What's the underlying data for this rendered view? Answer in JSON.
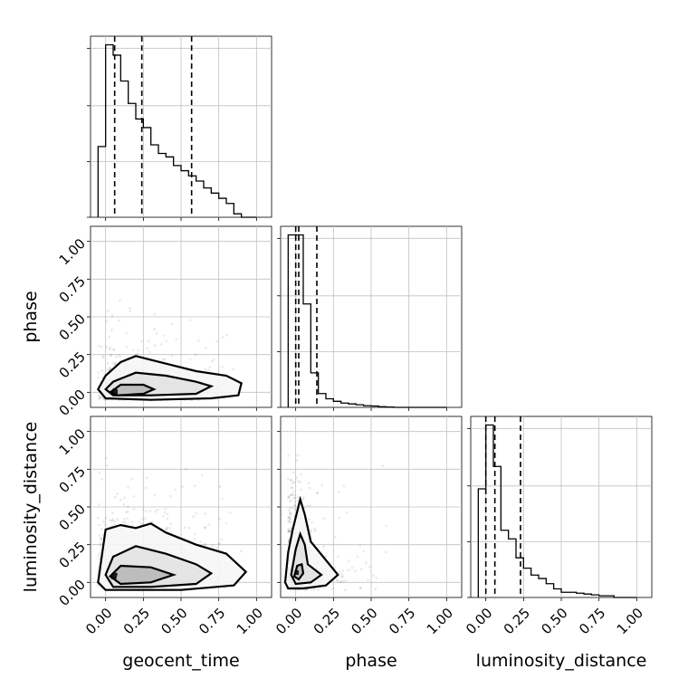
{
  "chart_data": {
    "type": "corner",
    "parameters": [
      "geocent_time",
      "phase",
      "luminosity_distance"
    ],
    "tick_labels": [
      "0.00",
      "0.25",
      "0.50",
      "0.75",
      "1.00"
    ],
    "range": [
      -0.1,
      1.1
    ],
    "grid": true,
    "diagonal": [
      {
        "name": "geocent_time",
        "bin_edges": [
          -0.05,
          0.0,
          0.05,
          0.1,
          0.15,
          0.2,
          0.25,
          0.3,
          0.35,
          0.4,
          0.45,
          0.5,
          0.55,
          0.6,
          0.65,
          0.7,
          0.75,
          0.8,
          0.85,
          0.9,
          0.95,
          1.0
        ],
        "counts": [
          0.41,
          1.0,
          0.94,
          0.79,
          0.66,
          0.57,
          0.52,
          0.42,
          0.37,
          0.35,
          0.3,
          0.27,
          0.24,
          0.21,
          0.17,
          0.14,
          0.11,
          0.08,
          0.02,
          0.0,
          0.0
        ],
        "quantiles": [
          0.06,
          0.24,
          0.57
        ]
      },
      {
        "name": "phase",
        "bin_edges": [
          -0.05,
          0.0,
          0.05,
          0.1,
          0.15,
          0.2,
          0.25,
          0.3,
          0.35,
          0.4,
          0.45,
          0.5,
          0.55,
          0.6,
          0.65,
          0.7,
          0.75,
          0.8,
          0.85,
          0.9,
          0.95,
          1.0
        ],
        "counts": [
          1.0,
          1.0,
          0.6,
          0.2,
          0.08,
          0.05,
          0.035,
          0.025,
          0.02,
          0.015,
          0.01,
          0.008,
          0.004,
          0.002,
          0.0,
          0.0,
          0.0,
          0.0,
          0.0,
          0.0,
          0.0
        ],
        "quantiles": [
          0.0,
          0.02,
          0.14
        ]
      },
      {
        "name": "luminosity_distance",
        "bin_edges": [
          -0.05,
          0.0,
          0.05,
          0.1,
          0.15,
          0.2,
          0.25,
          0.3,
          0.35,
          0.4,
          0.45,
          0.5,
          0.55,
          0.6,
          0.65,
          0.7,
          0.75,
          0.8,
          0.85,
          0.9,
          0.95,
          1.0
        ],
        "counts": [
          0.63,
          1.0,
          0.76,
          0.39,
          0.34,
          0.23,
          0.17,
          0.13,
          0.11,
          0.08,
          0.05,
          0.03,
          0.03,
          0.025,
          0.02,
          0.015,
          0.01,
          0.01,
          0.0,
          0.0,
          0.0
        ],
        "quantiles": [
          0.0,
          0.06,
          0.23
        ]
      }
    ],
    "pairs": [
      {
        "x": "geocent_time",
        "y": "phase",
        "contours": [
          [
            [
              -0.05,
              0.02
            ],
            [
              0.0,
              0.11
            ],
            [
              0.1,
              0.2
            ],
            [
              0.2,
              0.24
            ],
            [
              0.4,
              0.19
            ],
            [
              0.6,
              0.14
            ],
            [
              0.8,
              0.11
            ],
            [
              0.9,
              0.06
            ],
            [
              0.88,
              -0.02
            ],
            [
              0.7,
              -0.04
            ],
            [
              0.3,
              -0.05
            ],
            [
              0.0,
              -0.04
            ]
          ],
          [
            [
              0.0,
              0.02
            ],
            [
              0.05,
              0.07
            ],
            [
              0.2,
              0.13
            ],
            [
              0.4,
              0.11
            ],
            [
              0.6,
              0.07
            ],
            [
              0.7,
              0.04
            ],
            [
              0.6,
              -0.01
            ],
            [
              0.3,
              -0.02
            ],
            [
              0.05,
              -0.02
            ]
          ],
          [
            [
              0.03,
              0.0
            ],
            [
              0.1,
              0.05
            ],
            [
              0.25,
              0.05
            ],
            [
              0.32,
              0.02
            ],
            [
              0.25,
              -0.01
            ],
            [
              0.08,
              -0.02
            ]
          ],
          [
            [
              0.03,
              0.0
            ],
            [
              0.05,
              0.025
            ],
            [
              0.08,
              0.02
            ],
            [
              0.08,
              -0.01
            ],
            [
              0.05,
              -0.015
            ]
          ]
        ]
      },
      {
        "x": "geocent_time",
        "y": "luminosity_distance",
        "contours": [
          [
            [
              -0.05,
              0.0
            ],
            [
              0.0,
              0.35
            ],
            [
              0.1,
              0.38
            ],
            [
              0.2,
              0.36
            ],
            [
              0.3,
              0.39
            ],
            [
              0.4,
              0.33
            ],
            [
              0.6,
              0.25
            ],
            [
              0.8,
              0.19
            ],
            [
              0.93,
              0.07
            ],
            [
              0.85,
              -0.02
            ],
            [
              0.5,
              -0.05
            ],
            [
              0.0,
              -0.05
            ]
          ],
          [
            [
              0.0,
              0.05
            ],
            [
              0.05,
              0.17
            ],
            [
              0.2,
              0.24
            ],
            [
              0.4,
              0.19
            ],
            [
              0.6,
              0.12
            ],
            [
              0.7,
              0.06
            ],
            [
              0.6,
              -0.01
            ],
            [
              0.3,
              -0.03
            ],
            [
              0.05,
              -0.03
            ]
          ],
          [
            [
              0.03,
              0.04
            ],
            [
              0.1,
              0.11
            ],
            [
              0.3,
              0.1
            ],
            [
              0.45,
              0.05
            ],
            [
              0.3,
              0.0
            ],
            [
              0.1,
              -0.01
            ]
          ],
          [
            [
              0.03,
              0.04
            ],
            [
              0.05,
              0.07
            ],
            [
              0.08,
              0.06
            ],
            [
              0.07,
              0.02
            ],
            [
              0.04,
              0.02
            ]
          ]
        ]
      },
      {
        "x": "phase",
        "y": "luminosity_distance",
        "contours": [
          [
            [
              -0.07,
              0.0
            ],
            [
              -0.05,
              0.2
            ],
            [
              -0.02,
              0.35
            ],
            [
              0.03,
              0.55
            ],
            [
              0.06,
              0.45
            ],
            [
              0.1,
              0.27
            ],
            [
              0.28,
              0.05
            ],
            [
              0.2,
              -0.02
            ],
            [
              0.05,
              -0.04
            ],
            [
              -0.05,
              -0.04
            ]
          ],
          [
            [
              -0.03,
              0.05
            ],
            [
              0.0,
              0.22
            ],
            [
              0.03,
              0.32
            ],
            [
              0.06,
              0.25
            ],
            [
              0.08,
              0.12
            ],
            [
              0.17,
              0.05
            ],
            [
              0.1,
              0.0
            ],
            [
              0.0,
              -0.01
            ]
          ],
          [
            [
              -0.01,
              0.04
            ],
            [
              0.01,
              0.11
            ],
            [
              0.04,
              0.12
            ],
            [
              0.05,
              0.06
            ],
            [
              0.02,
              0.02
            ]
          ],
          [
            [
              -0.01,
              0.05
            ],
            [
              0.0,
              0.08
            ],
            [
              0.02,
              0.08
            ],
            [
              0.02,
              0.05
            ]
          ]
        ]
      }
    ]
  }
}
